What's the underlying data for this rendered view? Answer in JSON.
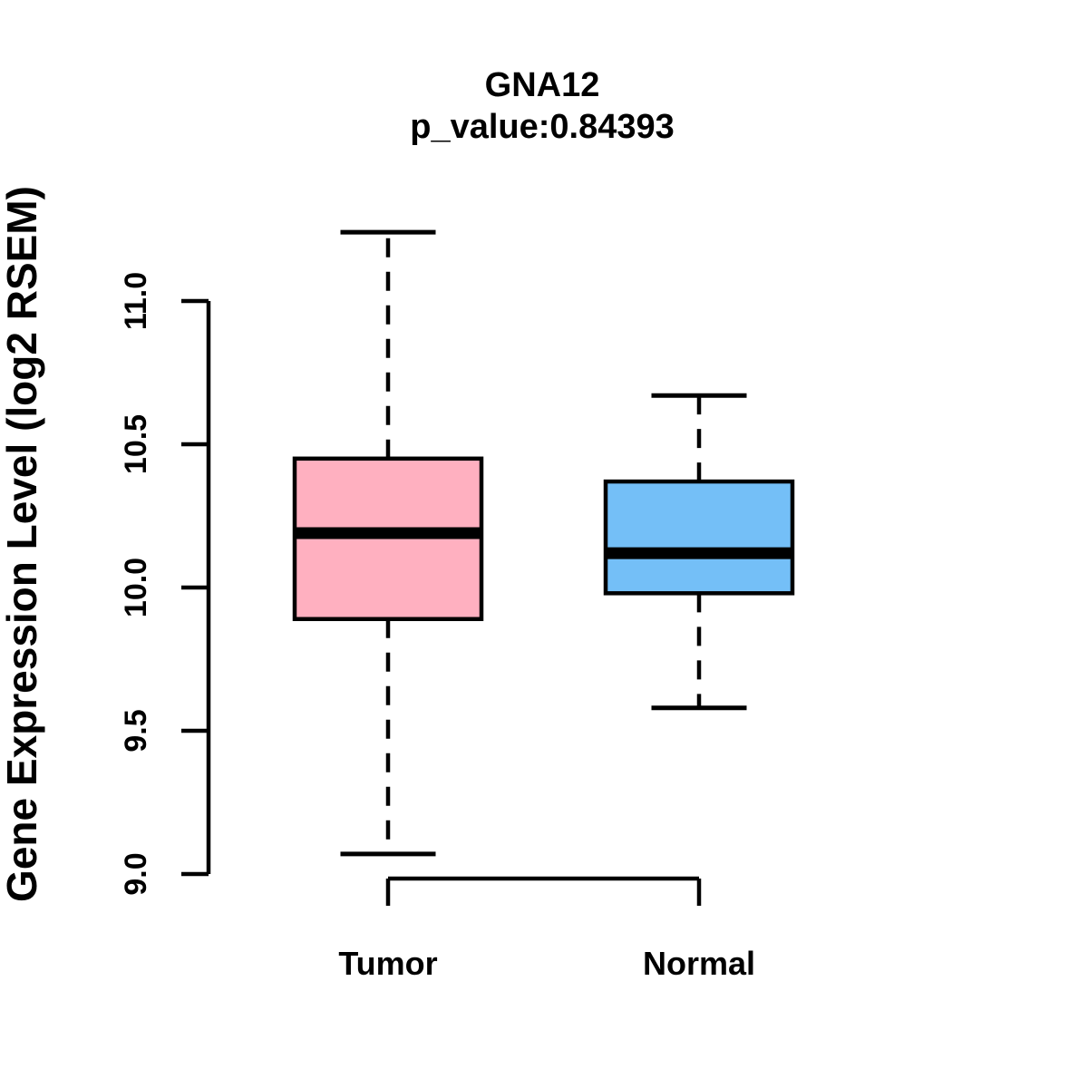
{
  "chart_data": {
    "type": "boxplot",
    "title": "GNA12",
    "subtitle": "p_value:0.84393",
    "ylabel": "Gene Expression Level (log2 RSEM)",
    "ylim": [
      9.0,
      11.0
    ],
    "ytick_labels": [
      "9.0",
      "9.5",
      "10.0",
      "10.5",
      "11.0"
    ],
    "categories": [
      "Tumor",
      "Normal"
    ],
    "series": [
      {
        "name": "Tumor",
        "lower_whisker": 9.07,
        "q1": 9.89,
        "median": 10.19,
        "q3": 10.45,
        "upper_whisker": 11.24,
        "fill_color": "#FFB0C0"
      },
      {
        "name": "Normal",
        "lower_whisker": 9.58,
        "q1": 9.98,
        "median": 10.12,
        "q3": 10.37,
        "upper_whisker": 10.67,
        "fill_color": "#74BFF7"
      }
    ],
    "colors": {
      "stroke": "#000000",
      "background": "#FFFFFF"
    },
    "legend": "none",
    "grid": false
  }
}
